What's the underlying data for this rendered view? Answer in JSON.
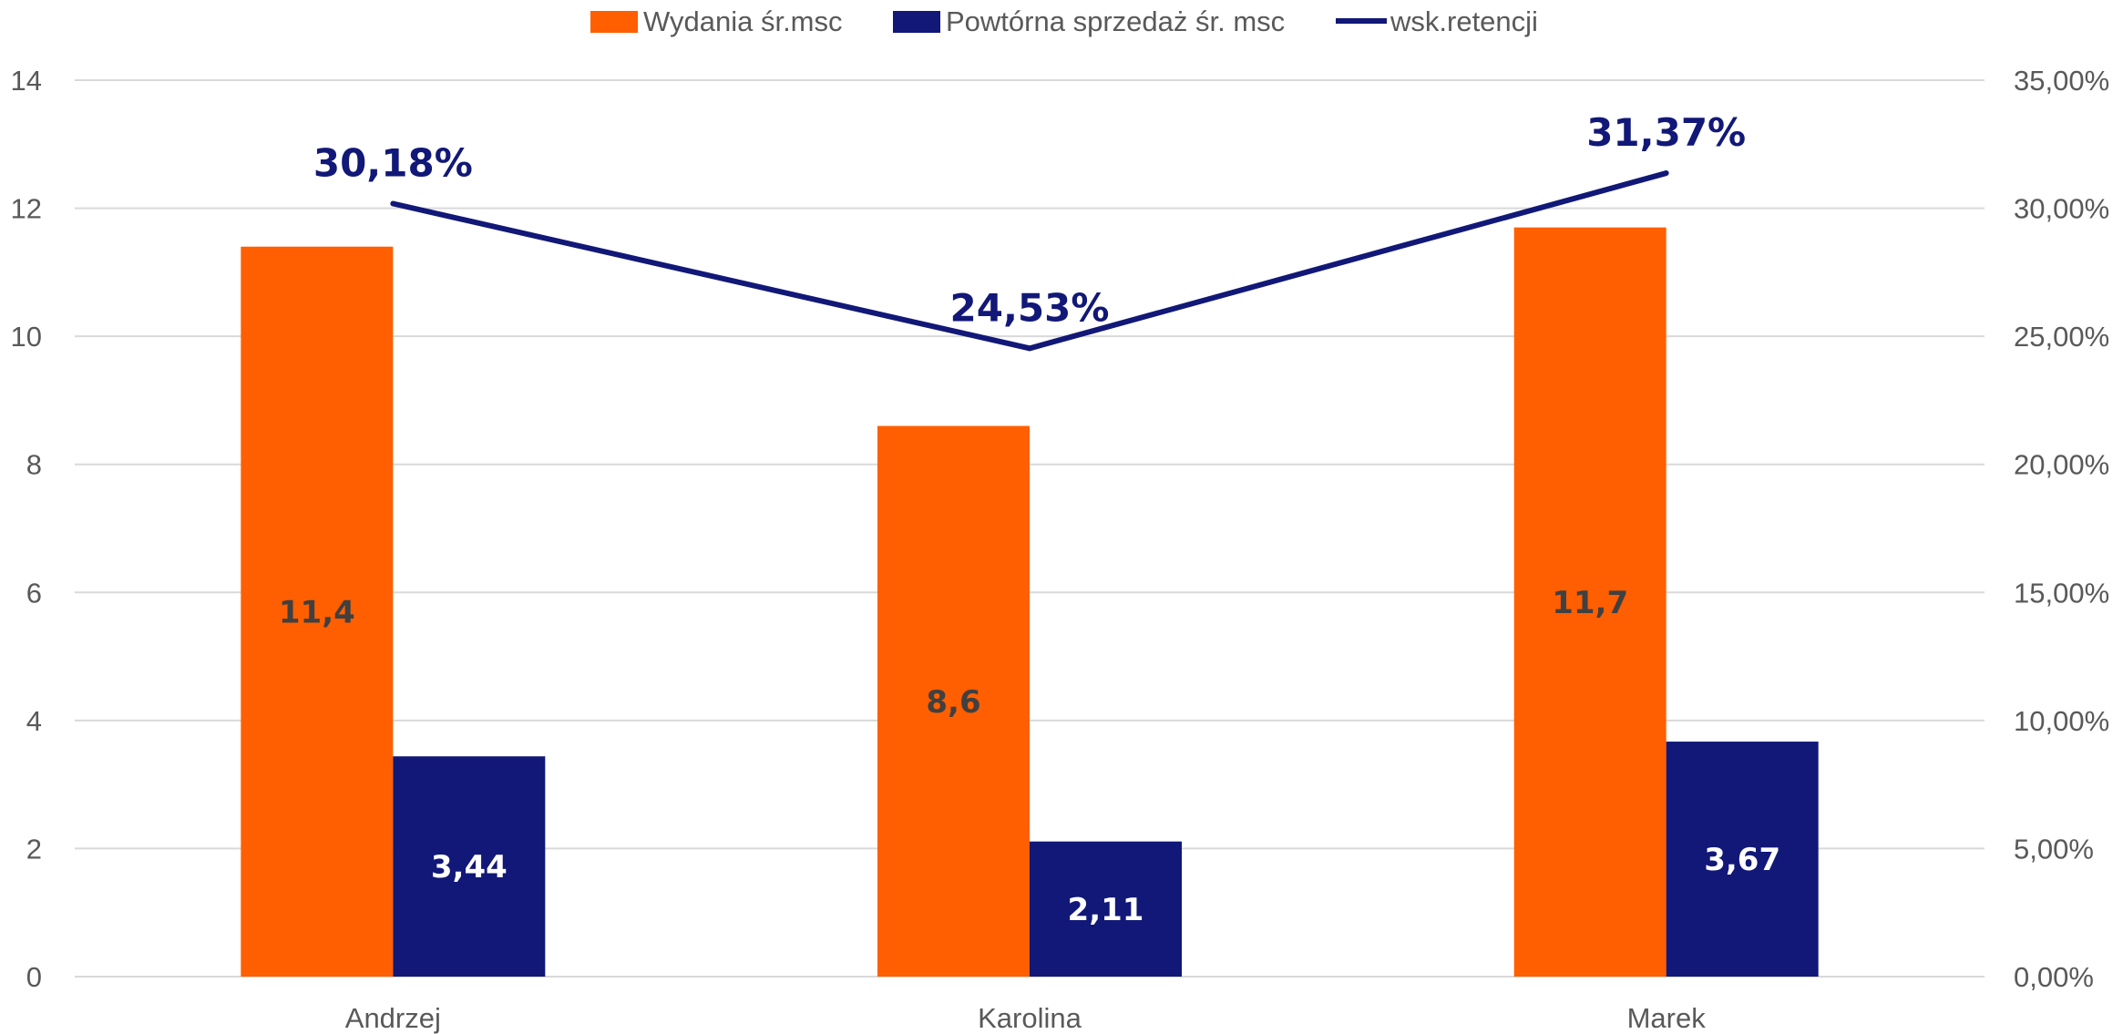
{
  "chart_data": {
    "type": "bar",
    "categories": [
      "Andrzej",
      "Karolina",
      "Marek"
    ],
    "series": [
      {
        "name": "Wydania śr.msc",
        "type": "bar",
        "axis": "left",
        "color": "#FF5F00",
        "values": [
          11.4,
          8.6,
          11.7
        ],
        "labels": [
          "11,4",
          "8,6",
          "11,7"
        ]
      },
      {
        "name": "Powtórna sprzedaż śr. msc",
        "type": "bar",
        "axis": "left",
        "color": "#111877",
        "values": [
          3.44,
          2.11,
          3.67
        ],
        "labels": [
          "3,44",
          "2,11",
          "3,67"
        ]
      },
      {
        "name": "wsk.retencji",
        "type": "line",
        "axis": "right",
        "color": "#111877",
        "values": [
          30.18,
          24.53,
          31.37
        ],
        "labels": [
          "30,18%",
          "24,53%",
          "31,37%"
        ]
      }
    ],
    "y_left": {
      "min": 0,
      "max": 14,
      "ticks": [
        "0",
        "2",
        "4",
        "6",
        "8",
        "10",
        "12",
        "14"
      ]
    },
    "y_right": {
      "min": 0,
      "max": 35,
      "ticks": [
        "0,00%",
        "5,00%",
        "10,00%",
        "15,00%",
        "20,00%",
        "25,00%",
        "30,00%",
        "35,00%"
      ]
    },
    "grid": true,
    "legend_position": "top-center"
  }
}
